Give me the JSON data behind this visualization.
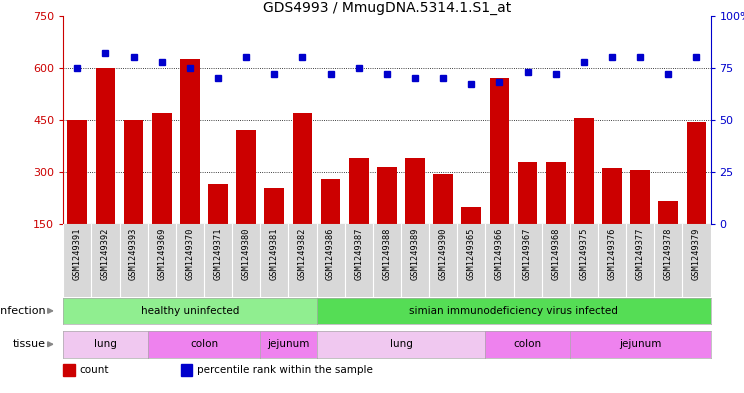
{
  "title": "GDS4993 / MmugDNA.5314.1.S1_at",
  "samples": [
    "GSM1249391",
    "GSM1249392",
    "GSM1249393",
    "GSM1249369",
    "GSM1249370",
    "GSM1249371",
    "GSM1249380",
    "GSM1249381",
    "GSM1249382",
    "GSM1249386",
    "GSM1249387",
    "GSM1249388",
    "GSM1249389",
    "GSM1249390",
    "GSM1249365",
    "GSM1249366",
    "GSM1249367",
    "GSM1249368",
    "GSM1249375",
    "GSM1249376",
    "GSM1249377",
    "GSM1249378",
    "GSM1249379"
  ],
  "counts": [
    450,
    600,
    450,
    470,
    625,
    265,
    420,
    255,
    470,
    280,
    340,
    315,
    340,
    295,
    200,
    570,
    330,
    330,
    455,
    310,
    305,
    215,
    445
  ],
  "percentiles": [
    75,
    82,
    80,
    78,
    75,
    70,
    80,
    72,
    80,
    72,
    75,
    72,
    70,
    70,
    67,
    68,
    73,
    72,
    78,
    80,
    80,
    72,
    80
  ],
  "ylim_left": [
    150,
    750
  ],
  "ylim_right": [
    0,
    100
  ],
  "yticks_left": [
    150,
    300,
    450,
    600,
    750
  ],
  "yticks_right": [
    0,
    25,
    50,
    75,
    100
  ],
  "bar_color": "#cc0000",
  "dot_color": "#0000cc",
  "infection_groups": [
    {
      "label": "healthy uninfected",
      "start": 0,
      "end": 9,
      "color": "#90ee90"
    },
    {
      "label": "simian immunodeficiency virus infected",
      "start": 9,
      "end": 23,
      "color": "#55dd55"
    }
  ],
  "tissue_groups": [
    {
      "label": "lung",
      "start": 0,
      "end": 3,
      "color": "#f0c8f0"
    },
    {
      "label": "colon",
      "start": 3,
      "end": 7,
      "color": "#ee82ee"
    },
    {
      "label": "jejunum",
      "start": 7,
      "end": 9,
      "color": "#ee82ee"
    },
    {
      "label": "lung",
      "start": 9,
      "end": 15,
      "color": "#f0c8f0"
    },
    {
      "label": "colon",
      "start": 15,
      "end": 18,
      "color": "#ee82ee"
    },
    {
      "label": "jejunum",
      "start": 18,
      "end": 23,
      "color": "#ee82ee"
    }
  ],
  "legend_items": [
    {
      "label": "count",
      "color": "#cc0000"
    },
    {
      "label": "percentile rank within the sample",
      "color": "#0000cc"
    }
  ],
  "infection_label": "infection",
  "tissue_label": "tissue",
  "bg_color": "#ffffff",
  "plot_bg": "#ffffff",
  "xtick_bg": "#d8d8d8"
}
